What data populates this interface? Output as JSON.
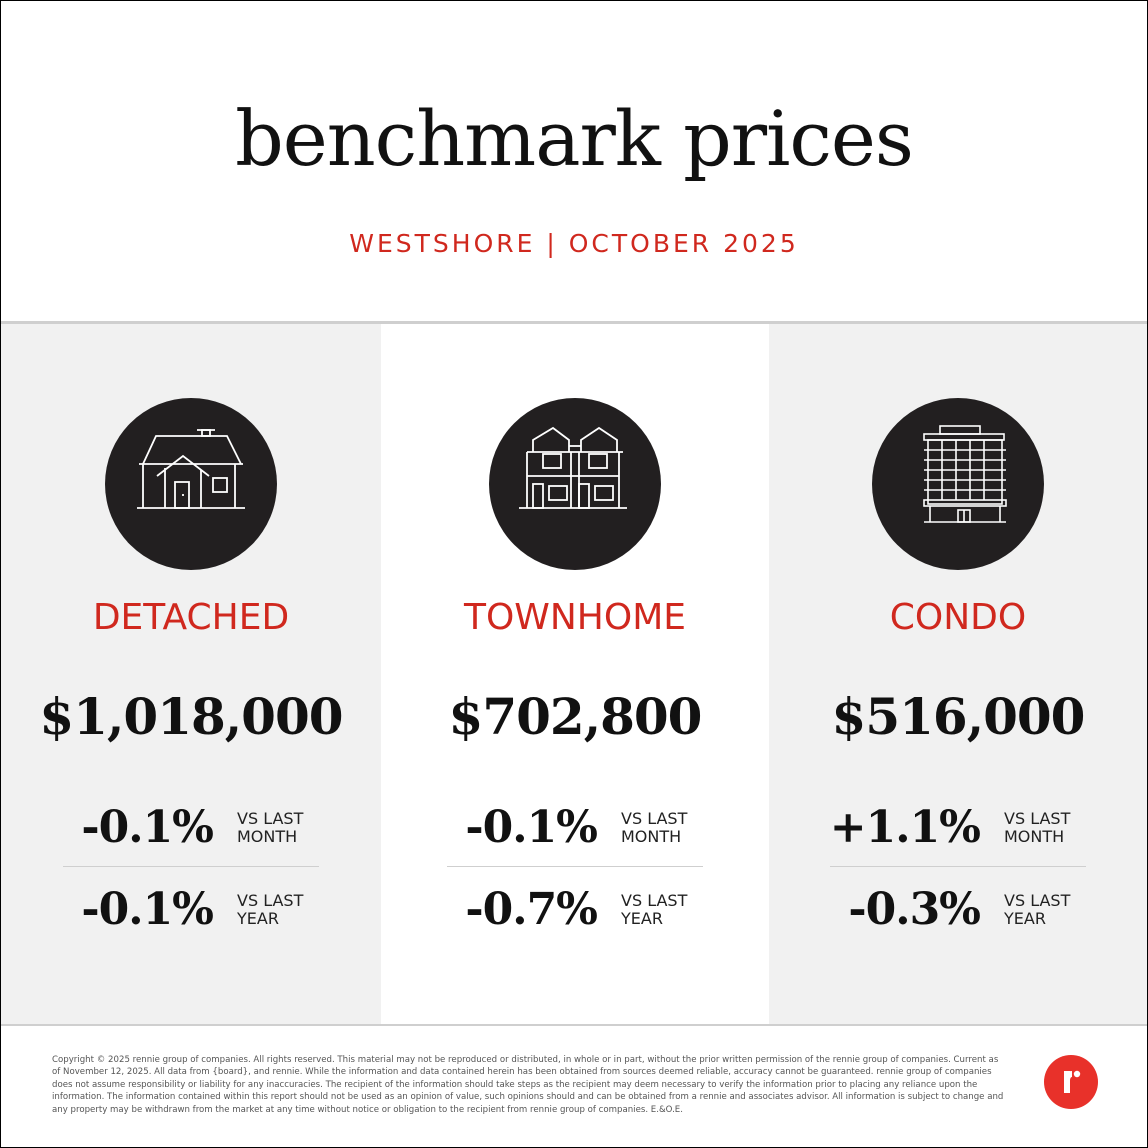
{
  "header": {
    "title": "benchmark prices",
    "subtitle": "WESTSHORE | OCTOBER 2025"
  },
  "accent_color": "#d0281e",
  "columns": [
    {
      "icon": "house-icon",
      "category": "DETACHED",
      "price": "$1,018,000",
      "month_change": "-0.1%",
      "year_change": "-0.1%"
    },
    {
      "icon": "townhome-icon",
      "category": "TOWNHOME",
      "price": "$702,800",
      "month_change": "-0.1%",
      "year_change": "-0.7%"
    },
    {
      "icon": "condo-building-icon",
      "category": "CONDO",
      "price": "$516,000",
      "month_change": "+1.1%",
      "year_change": "-0.3%"
    }
  ],
  "labels": {
    "vs_last": "VS LAST",
    "month": "MONTH",
    "year": "YEAR"
  },
  "footer": {
    "disclaimer": "Copyright © 2025 rennie group of companies. All rights reserved. This material may not be reproduced or distributed, in whole or in part, without the prior written permission of the rennie group of companies. Current as of November 12, 2025. All data from {board}, and rennie. While the information and data contained herein has been obtained from sources deemed reliable, accuracy cannot be guaranteed. rennie group of companies does not assume responsibility or liability for any inaccuracies. The recipient of the information should take steps as the recipient may deem necessary to verify the information prior to placing any reliance upon the information. The information contained within this report should not be used as an opinion of value, such opinions should and can be obtained from a rennie and associates advisor. All information is subject to change and any property may be withdrawn from the market at any time without notice or obligation to the recipient from rennie group of companies. E.&O.E.",
    "logo_icon": "rennie-logo-icon"
  }
}
